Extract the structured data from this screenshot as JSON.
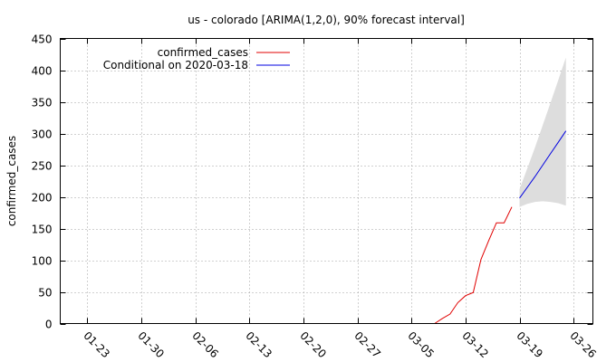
{
  "chart_data": {
    "type": "line",
    "title": "us - colorado [ARIMA(1,2,0), 90% forecast interval]",
    "xlabel": "",
    "ylabel": "confirmed_cases",
    "x_range_days": [
      -3.5,
      65.5
    ],
    "ylim": [
      0,
      450
    ],
    "y_ticks": [
      0,
      50,
      100,
      150,
      200,
      250,
      300,
      350,
      400,
      450
    ],
    "x_ticks": [
      {
        "day": 0,
        "label": "01-23"
      },
      {
        "day": 7,
        "label": "01-30"
      },
      {
        "day": 14,
        "label": "02-06"
      },
      {
        "day": 21,
        "label": "02-13"
      },
      {
        "day": 28,
        "label": "02-20"
      },
      {
        "day": 35,
        "label": "02-27"
      },
      {
        "day": 42,
        "label": "03-05"
      },
      {
        "day": 49,
        "label": "03-12"
      },
      {
        "day": 56,
        "label": "03-19"
      },
      {
        "day": 63,
        "label": "03-26"
      }
    ],
    "grid": true,
    "legend_position": "top-left",
    "series": [
      {
        "name": "confirmed_cases",
        "color": "#e00000",
        "x_days": [
          45,
          46,
          47,
          48,
          49,
          50,
          51,
          52,
          53,
          54,
          55
        ],
        "values": [
          0,
          8,
          15,
          33,
          44,
          49,
          101,
          131,
          159,
          159,
          184
        ]
      },
      {
        "name": "Conditional on 2020-03-18",
        "color": "#0000e0",
        "x_days": [
          56,
          57,
          58,
          59,
          60,
          61,
          62
        ],
        "values": [
          198,
          215,
          232,
          250,
          268,
          286,
          304
        ]
      }
    ],
    "forecast_interval": {
      "color": "#dddddd",
      "x_days": [
        56,
        57,
        58,
        59,
        60,
        61,
        62
      ],
      "lower": [
        184,
        189,
        192,
        193,
        192,
        190,
        186
      ],
      "upper": [
        212,
        245,
        278,
        313,
        348,
        384,
        420
      ]
    }
  }
}
